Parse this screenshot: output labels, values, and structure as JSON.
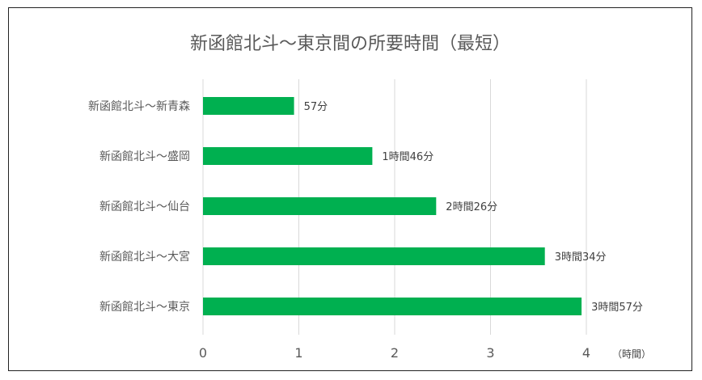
{
  "chart_data": {
    "type": "bar",
    "orientation": "horizontal",
    "title": "新函館北斗〜東京間の所要時間（最短）",
    "categories": [
      "新函館北斗〜新青森",
      "新函館北斗〜盛岡",
      "新函館北斗〜仙台",
      "新函館北斗〜大宮",
      "新函館北斗〜東京"
    ],
    "values": [
      0.95,
      1.767,
      2.433,
      3.567,
      3.95
    ],
    "data_labels": [
      "57分",
      "1時間46分",
      "2時間26分",
      "3時間34分",
      "3時間57分"
    ],
    "x_ticks": [
      "0",
      "1",
      "2",
      "3",
      "4"
    ],
    "xlim": [
      0,
      4
    ],
    "xunit": "（時間）",
    "grid": true,
    "bar_color": "#00B050",
    "gridline_color": "#d9d9d9"
  }
}
